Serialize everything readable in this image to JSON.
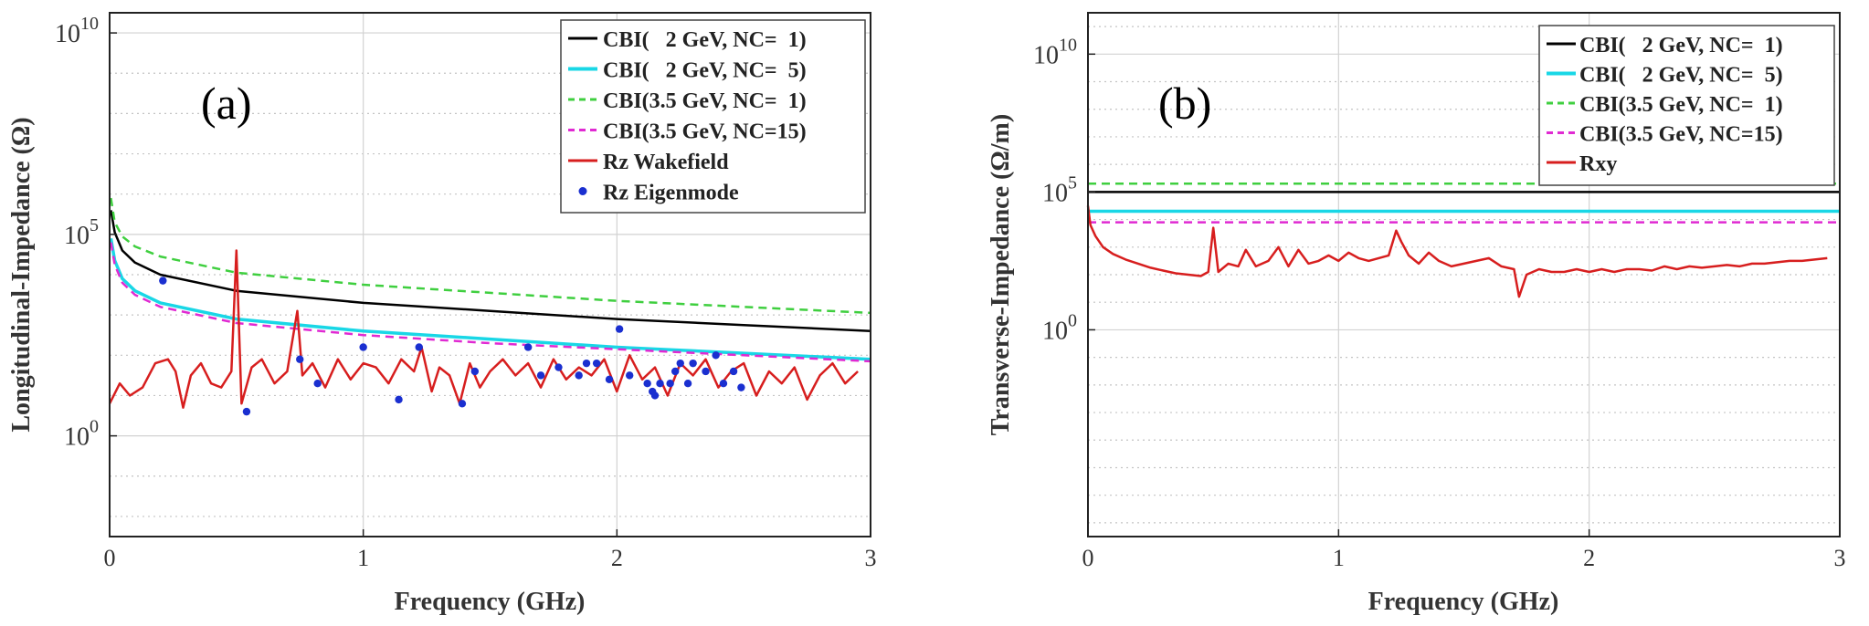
{
  "colors": {
    "cbi_2gev_nc1": "#000000",
    "cbi_2gev_nc5": "#19d7e6",
    "cbi_35gev_nc1": "#3fcf3f",
    "cbi_35gev_nc15": "#e02ad2",
    "wakefield": "#d71e1e",
    "eigenmode": "#1a2fd0",
    "grid": "#d2d2d2",
    "minorgrid": "#c4c4c4"
  },
  "chart_data": [
    {
      "type": "line",
      "panel_label": "(a)",
      "title": "",
      "xlabel": "Frequency (GHz)",
      "ylabel": "Longitudinal-Impedance (Ω)",
      "xlim": [
        0,
        3
      ],
      "ylim_log10": [
        -2.5,
        10.5
      ],
      "xticks": [
        "0",
        "1",
        "2",
        "3"
      ],
      "yticks": [
        {
          "base": "10",
          "exp": "0",
          "value_log10": 0
        },
        {
          "base": "10",
          "exp": "5",
          "value_log10": 5
        },
        {
          "base": "10",
          "exp": "10",
          "value_log10": 10
        }
      ],
      "grid": true,
      "legend_position": "top-right",
      "legend": [
        {
          "key": "cbi1",
          "label": "CBI(   2 GeV, NC=  1)",
          "style": "solid",
          "color_key": "cbi_2gev_nc1",
          "marker": "none"
        },
        {
          "key": "cbi2",
          "label": "CBI(   2 GeV, NC=  5)",
          "style": "solid",
          "color_key": "cbi_2gev_nc5",
          "marker": "none"
        },
        {
          "key": "cbi3",
          "label": "CBI(3.5 GeV, NC=  1)",
          "style": "dashed",
          "color_key": "cbi_35gev_nc1",
          "marker": "none"
        },
        {
          "key": "cbi4",
          "label": "CBI(3.5 GeV, NC=15)",
          "style": "dashed",
          "color_key": "cbi_35gev_nc15",
          "marker": "none"
        },
        {
          "key": "wake",
          "label": "Rz Wakefield",
          "style": "solid",
          "color_key": "wakefield",
          "marker": "none"
        },
        {
          "key": "eig",
          "label": "Rz Eigenmode",
          "style": "none",
          "color_key": "eigenmode",
          "marker": "dot"
        }
      ],
      "series": [
        {
          "key": "cbi1",
          "name": "CBI(   2 GeV, NC=  1)",
          "x": [
            0.005,
            0.02,
            0.05,
            0.1,
            0.2,
            0.5,
            1.0,
            1.5,
            2.0,
            2.5,
            3.0
          ],
          "y_log10": [
            5.6,
            5.05,
            4.6,
            4.3,
            4.0,
            3.6,
            3.3,
            3.1,
            2.9,
            2.75,
            2.6
          ]
        },
        {
          "key": "cbi2",
          "name": "CBI(   2 GeV, NC=  5)",
          "x": [
            0.005,
            0.02,
            0.05,
            0.1,
            0.2,
            0.5,
            1.0,
            1.5,
            2.0,
            2.5,
            3.0
          ],
          "y_log10": [
            4.9,
            4.35,
            3.9,
            3.6,
            3.3,
            2.9,
            2.6,
            2.4,
            2.2,
            2.05,
            1.9
          ]
        },
        {
          "key": "cbi3",
          "name": "CBI(3.5 GeV, NC=  1)",
          "x": [
            0.005,
            0.02,
            0.05,
            0.1,
            0.2,
            0.5,
            1.0,
            1.5,
            2.0,
            2.5,
            3.0
          ],
          "y_log10": [
            5.9,
            5.3,
            4.95,
            4.7,
            4.45,
            4.05,
            3.75,
            3.55,
            3.35,
            3.2,
            3.05
          ]
        },
        {
          "key": "cbi4",
          "name": "CBI(3.5 GeV, NC=15)",
          "x": [
            0.005,
            0.02,
            0.05,
            0.1,
            0.2,
            0.5,
            1.0,
            1.5,
            2.0,
            2.5,
            3.0
          ],
          "y_log10": [
            4.8,
            4.25,
            3.8,
            3.5,
            3.2,
            2.8,
            2.5,
            2.3,
            2.15,
            2.0,
            1.85
          ]
        },
        {
          "key": "wake",
          "name": "Rz Wakefield",
          "x": [
            0.0,
            0.04,
            0.08,
            0.13,
            0.18,
            0.23,
            0.26,
            0.29,
            0.32,
            0.36,
            0.4,
            0.44,
            0.48,
            0.5,
            0.52,
            0.56,
            0.6,
            0.65,
            0.7,
            0.74,
            0.76,
            0.8,
            0.85,
            0.9,
            0.95,
            1.0,
            1.05,
            1.1,
            1.15,
            1.2,
            1.23,
            1.27,
            1.3,
            1.34,
            1.38,
            1.42,
            1.46,
            1.5,
            1.55,
            1.6,
            1.65,
            1.7,
            1.75,
            1.8,
            1.85,
            1.9,
            1.95,
            2.0,
            2.05,
            2.1,
            2.15,
            2.2,
            2.25,
            2.3,
            2.35,
            2.4,
            2.45,
            2.5,
            2.55,
            2.6,
            2.65,
            2.7,
            2.75,
            2.8,
            2.85,
            2.9,
            2.95
          ],
          "y_log10": [
            0.8,
            1.3,
            1.0,
            1.2,
            1.8,
            1.9,
            1.6,
            0.7,
            1.5,
            1.8,
            1.3,
            1.2,
            1.6,
            4.6,
            0.8,
            1.7,
            1.9,
            1.3,
            1.6,
            3.1,
            1.5,
            1.8,
            1.2,
            1.9,
            1.4,
            1.8,
            1.7,
            1.3,
            1.9,
            1.6,
            2.2,
            1.1,
            1.7,
            1.5,
            0.8,
            1.8,
            1.2,
            1.6,
            1.9,
            1.5,
            1.8,
            1.2,
            1.9,
            1.4,
            1.7,
            1.5,
            1.9,
            1.1,
            2.0,
            1.4,
            1.7,
            1.0,
            1.8,
            1.5,
            1.9,
            1.2,
            1.6,
            1.8,
            1.0,
            1.6,
            1.3,
            1.7,
            0.9,
            1.5,
            1.8,
            1.3,
            1.6
          ]
        },
        {
          "key": "eig",
          "name": "Rz Eigenmode",
          "x": [
            0.21,
            0.54,
            0.75,
            0.82,
            1.0,
            1.14,
            1.22,
            1.39,
            1.44,
            1.65,
            1.7,
            1.77,
            1.85,
            1.88,
            1.92,
            1.97,
            2.01,
            2.05,
            2.12,
            2.14,
            2.15,
            2.17,
            2.21,
            2.23,
            2.25,
            2.28,
            2.3,
            2.35,
            2.39,
            2.42,
            2.46,
            2.49
          ],
          "y_log10": [
            3.85,
            0.6,
            1.9,
            1.3,
            2.2,
            0.9,
            2.2,
            0.8,
            1.6,
            2.2,
            1.5,
            1.7,
            1.5,
            1.8,
            1.8,
            1.4,
            2.65,
            1.5,
            1.3,
            1.1,
            1.0,
            1.3,
            1.3,
            1.6,
            1.8,
            1.3,
            1.8,
            1.6,
            2.0,
            1.3,
            1.6,
            1.2
          ]
        }
      ]
    },
    {
      "type": "line",
      "panel_label": "(b)",
      "title": "",
      "xlabel": "Frequency (GHz)",
      "ylabel": "Transverse-Impedance (Ω/m)",
      "xlim": [
        0,
        3
      ],
      "ylim_log10": [
        -7.5,
        11.5
      ],
      "xticks": [
        "0",
        "1",
        "2",
        "3"
      ],
      "yticks": [
        {
          "base": "10",
          "exp": "0",
          "value_log10": 0
        },
        {
          "base": "10",
          "exp": "5",
          "value_log10": 5
        },
        {
          "base": "10",
          "exp": "10",
          "value_log10": 10
        }
      ],
      "grid": true,
      "legend_position": "top-right",
      "legend": [
        {
          "key": "cbi1",
          "label": "CBI(   2 GeV, NC=  1)",
          "style": "solid",
          "color_key": "cbi_2gev_nc1",
          "marker": "none"
        },
        {
          "key": "cbi2",
          "label": "CBI(   2 GeV, NC=  5)",
          "style": "solid",
          "color_key": "cbi_2gev_nc5",
          "marker": "none"
        },
        {
          "key": "cbi3",
          "label": "CBI(3.5 GeV, NC=  1)",
          "style": "dashed",
          "color_key": "cbi_35gev_nc1",
          "marker": "none"
        },
        {
          "key": "cbi4",
          "label": "CBI(3.5 GeV, NC=15)",
          "style": "dashed",
          "color_key": "cbi_35gev_nc15",
          "marker": "none"
        },
        {
          "key": "rxy",
          "label": "Rxy",
          "style": "solid",
          "color_key": "wakefield",
          "marker": "none"
        }
      ],
      "series": [
        {
          "key": "cbi1",
          "name": "CBI(   2 GeV, NC=  1)",
          "x": [
            0,
            3
          ],
          "y_log10": [
            5.0,
            5.0
          ]
        },
        {
          "key": "cbi2",
          "name": "CBI(   2 GeV, NC=  5)",
          "x": [
            0,
            3
          ],
          "y_log10": [
            4.3,
            4.3
          ]
        },
        {
          "key": "cbi3",
          "name": "CBI(3.5 GeV, NC=  1)",
          "x": [
            0,
            3
          ],
          "y_log10": [
            5.3,
            5.3
          ]
        },
        {
          "key": "cbi4",
          "name": "CBI(3.5 GeV, NC=15)",
          "x": [
            0,
            3
          ],
          "y_log10": [
            3.9,
            3.9
          ]
        },
        {
          "key": "rxy",
          "name": "Rxy",
          "x": [
            0.0,
            0.01,
            0.03,
            0.06,
            0.1,
            0.15,
            0.2,
            0.25,
            0.3,
            0.35,
            0.4,
            0.45,
            0.48,
            0.5,
            0.52,
            0.56,
            0.6,
            0.63,
            0.67,
            0.72,
            0.76,
            0.8,
            0.84,
            0.88,
            0.92,
            0.96,
            1.0,
            1.04,
            1.08,
            1.12,
            1.16,
            1.2,
            1.23,
            1.25,
            1.28,
            1.32,
            1.36,
            1.4,
            1.45,
            1.5,
            1.55,
            1.6,
            1.65,
            1.7,
            1.72,
            1.75,
            1.8,
            1.85,
            1.9,
            1.95,
            2.0,
            2.05,
            2.1,
            2.15,
            2.2,
            2.25,
            2.3,
            2.35,
            2.4,
            2.45,
            2.5,
            2.55,
            2.6,
            2.65,
            2.7,
            2.75,
            2.8,
            2.85,
            2.9,
            2.95
          ],
          "y_log10": [
            4.5,
            3.8,
            3.4,
            3.0,
            2.75,
            2.55,
            2.4,
            2.25,
            2.15,
            2.05,
            2.0,
            1.95,
            2.1,
            3.7,
            2.1,
            2.4,
            2.3,
            2.9,
            2.3,
            2.5,
            3.0,
            2.3,
            2.9,
            2.4,
            2.5,
            2.7,
            2.5,
            2.8,
            2.6,
            2.5,
            2.6,
            2.7,
            3.6,
            3.2,
            2.7,
            2.4,
            2.8,
            2.5,
            2.3,
            2.4,
            2.5,
            2.6,
            2.3,
            2.2,
            1.2,
            2.0,
            2.2,
            2.1,
            2.1,
            2.2,
            2.1,
            2.2,
            2.1,
            2.2,
            2.2,
            2.15,
            2.3,
            2.2,
            2.3,
            2.25,
            2.3,
            2.35,
            2.3,
            2.4,
            2.4,
            2.45,
            2.5,
            2.5,
            2.55,
            2.6
          ]
        }
      ]
    }
  ]
}
